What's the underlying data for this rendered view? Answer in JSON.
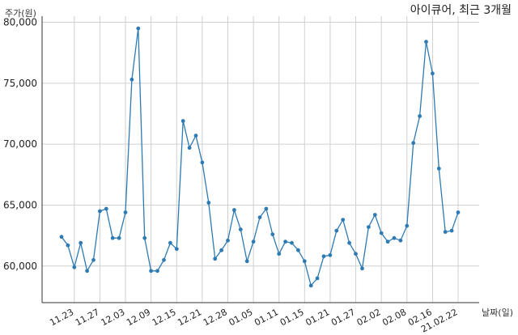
{
  "chart_data": {
    "type": "line",
    "title": "아이큐어, 최근 3개월",
    "xlabel": "날짜(일)",
    "ylabel": "주가(원)",
    "ylim": [
      57000,
      80500
    ],
    "grid": true,
    "y_ticks": [
      60000,
      65000,
      70000,
      75000,
      80000
    ],
    "y_tick_labels": [
      "60,000",
      "65,000",
      "70,000",
      "75,000",
      "80,000"
    ],
    "x_tick_labels": [
      "11.23",
      "11.27",
      "12.03",
      "12.09",
      "12.15",
      "12.21",
      "12.28",
      "01.05",
      "01.11",
      "01.15",
      "01.21",
      "01.27",
      "02.02",
      "02.08",
      "02.16",
      "21.02.22"
    ],
    "x_tick_indices": [
      2,
      6,
      10,
      14,
      18,
      22,
      26,
      30,
      34,
      38,
      42,
      46,
      50,
      54,
      58,
      62
    ],
    "series": [
      {
        "color": "#2e7bb4",
        "values": [
          62400,
          61700,
          59900,
          61900,
          59600,
          60500,
          64500,
          64700,
          62300,
          62300,
          64400,
          75300,
          79500,
          62300,
          59600,
          59600,
          60500,
          61900,
          61400,
          71900,
          69700,
          70700,
          68500,
          65200,
          60600,
          61300,
          62100,
          64600,
          63000,
          60400,
          62000,
          64000,
          64700,
          62600,
          61000,
          62000,
          61900,
          61300,
          60400,
          58400,
          59000,
          60800,
          60900,
          62900,
          63800,
          61900,
          61000,
          59800,
          63200,
          64200,
          62700,
          62000,
          62300,
          62100,
          63300,
          70100,
          72300,
          78400,
          75800,
          68000,
          62800,
          62900,
          64400
        ]
      }
    ]
  }
}
